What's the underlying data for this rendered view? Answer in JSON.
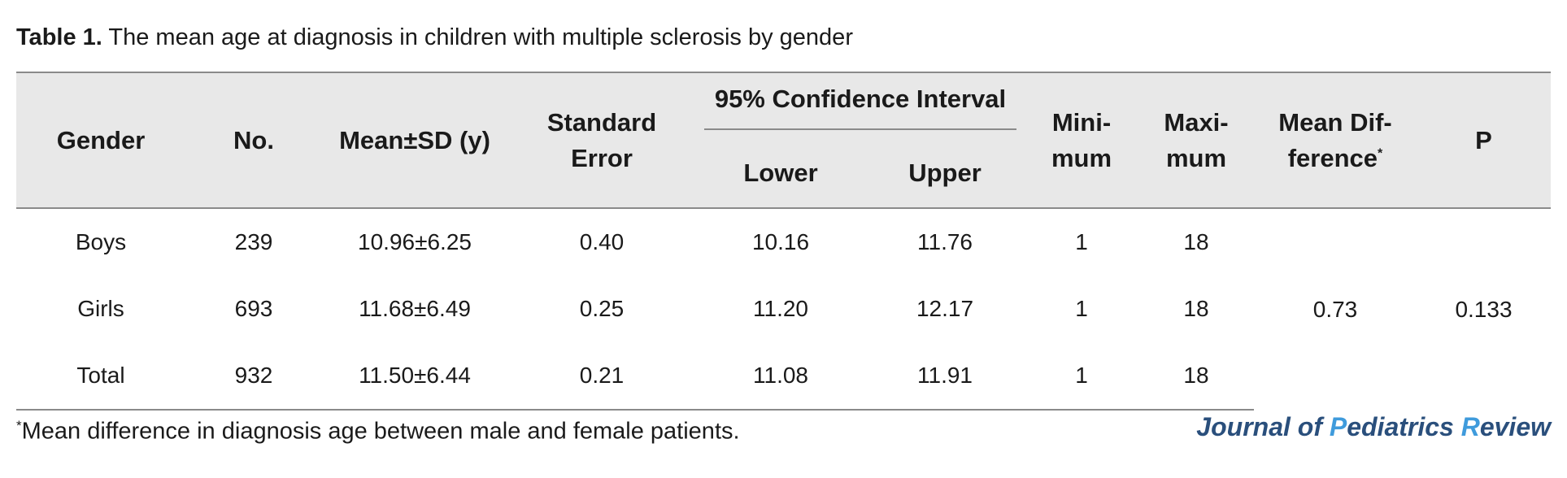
{
  "caption": {
    "label": "Table 1.",
    "text": " The mean age at diagnosis in children with multiple sclerosis by gender"
  },
  "table": {
    "headers": {
      "gender": "Gender",
      "no": "No.",
      "mean_sd": "Mean±SD (y)",
      "std_error_line1": "Standard",
      "std_error_line2": "Error",
      "ci_group": "95% Confidence Interval",
      "ci_lower": "Lower",
      "ci_upper": "Upper",
      "min_line1": "Mini-",
      "min_line2": "mum",
      "max_line1": "Maxi-",
      "max_line2": "mum",
      "mean_diff_line1": "Mean Dif-",
      "mean_diff_line2": "ference",
      "mean_diff_marker": "*",
      "p": "P"
    },
    "rows": [
      {
        "gender": "Boys",
        "no": "239",
        "mean_sd": "10.96±6.25",
        "se": "0.40",
        "lower": "10.16",
        "upper": "11.76",
        "min": "1",
        "max": "18"
      },
      {
        "gender": "Girls",
        "no": "693",
        "mean_sd": "11.68±6.49",
        "se": "0.25",
        "lower": "11.20",
        "upper": "12.17",
        "min": "1",
        "max": "18"
      },
      {
        "gender": "Total",
        "no": "932",
        "mean_sd": "11.50±6.44",
        "se": "0.21",
        "lower": "11.08",
        "upper": "11.91",
        "min": "1",
        "max": "18"
      }
    ],
    "mean_difference": "0.73",
    "p_value": "0.133"
  },
  "footnote": {
    "marker": "*",
    "text": "Mean difference in diagnosis age between male and female patients."
  },
  "journal": {
    "part1": "Journal of ",
    "p_letter": "P",
    "part2": "ediatrics ",
    "r_letter": "R",
    "part3": "eview",
    "color_main": "#2a4f7c",
    "color_accent": "#3f9bdc"
  }
}
